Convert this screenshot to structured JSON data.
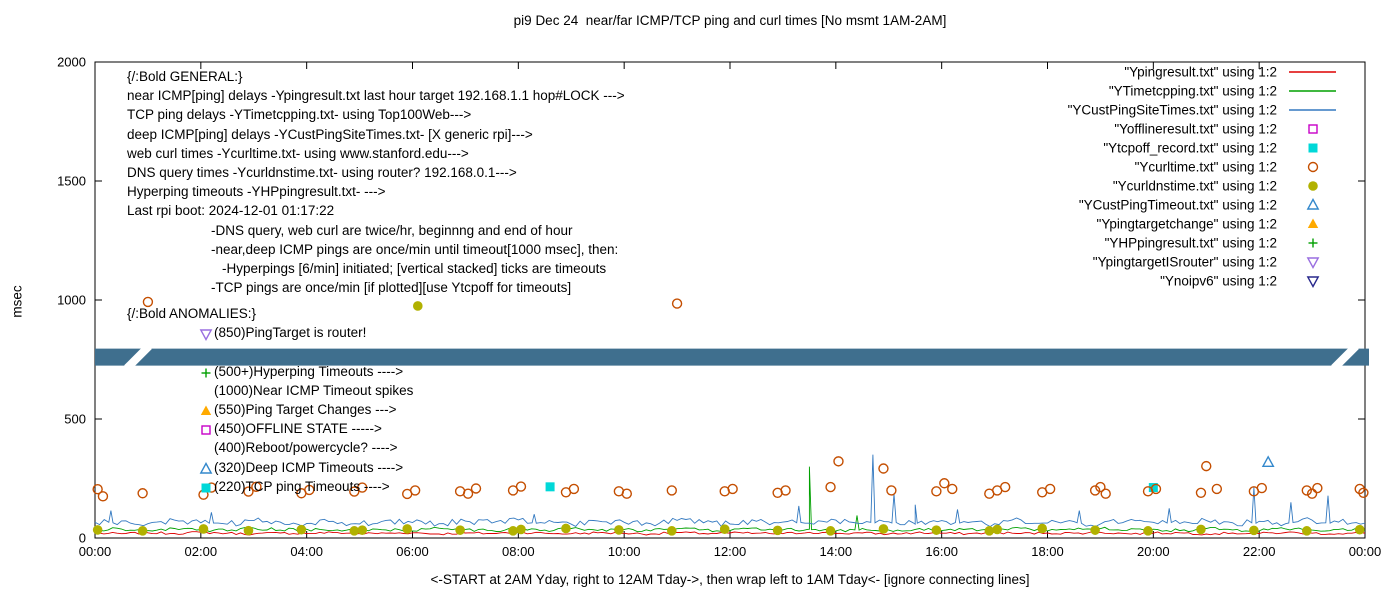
{
  "chart_data": {
    "type": "line+scatter",
    "title": "pi9 Dec 24  near/far ICMP/TCP ping and curl times [No msmt 1AM-2AM]",
    "xlabel": "<-START at 2AM Yday, right to 12AM Tday->, then wrap left to 1AM Tday<- [ignore connecting lines]",
    "ylabel": "msec",
    "x_range": [
      0,
      24
    ],
    "y_range": [
      0,
      2000
    ],
    "y_ticks": [
      0,
      500,
      1000,
      1500,
      2000
    ],
    "x_tick_labels": [
      "00:00",
      "02:00",
      "04:00",
      "06:00",
      "08:00",
      "10:00",
      "12:00",
      "14:00",
      "16:00",
      "18:00",
      "20:00",
      "22:00",
      "00:00"
    ],
    "grid": false,
    "legend_position": "top-right-inside",
    "band": {
      "y_msec": 760,
      "color": "#3f6f8e"
    },
    "series": [
      {
        "name": "Ypingresult.txt",
        "legend": "\"Ypingresult.txt\" using 1:2",
        "style": "line",
        "color": "#dd0000",
        "x_start": 0,
        "x_step": 0.5,
        "noise": 5,
        "values": [
          20,
          18,
          22,
          19,
          24,
          20,
          17,
          21,
          19,
          23,
          18,
          20,
          22,
          17,
          21,
          19,
          24,
          20,
          18,
          22,
          20,
          17,
          23,
          19,
          21,
          20,
          18,
          24,
          19,
          21,
          17,
          22,
          20,
          18,
          23,
          19,
          21,
          20,
          24,
          18,
          20,
          22,
          17,
          21,
          19,
          23,
          20,
          18,
          21
        ],
        "spikes": []
      },
      {
        "name": "YTimetcpping.txt",
        "legend": "\"YTimetcpping.txt\" using 1:2",
        "style": "line",
        "color": "#00a000",
        "x_start": 0,
        "x_step": 0.5,
        "noise": 7,
        "values": [
          34,
          38,
          31,
          40,
          35,
          30,
          42,
          33,
          37,
          32,
          39,
          34,
          30,
          41,
          36,
          31,
          38,
          33,
          40,
          32,
          36,
          30,
          39,
          35,
          31,
          42,
          34,
          37,
          30,
          40,
          33,
          36,
          31,
          38,
          34,
          41,
          30,
          35,
          39,
          32,
          37,
          31,
          40,
          34,
          30,
          38,
          33,
          36,
          34
        ],
        "spikes": [
          [
            13.46,
            36
          ],
          [
            13.5,
            300
          ],
          [
            13.54,
            35
          ],
          [
            14.36,
            34
          ],
          [
            14.4,
            95
          ],
          [
            14.44,
            33
          ]
        ]
      },
      {
        "name": "YCustPingSiteTimes.txt",
        "legend": "\"YCustPingSiteTimes.txt\" using 1:2",
        "style": "line",
        "color": "#3379c0",
        "x_start": 0,
        "x_step": 0.5,
        "noise": 13,
        "values": [
          66,
          72,
          60,
          75,
          64,
          58,
          73,
          67,
          61,
          70,
          59,
          74,
          65,
          60,
          71,
          63,
          76,
          62,
          58,
          72,
          66,
          60,
          74,
          64,
          59,
          70,
          67,
          62,
          75,
          61,
          68,
          58,
          73,
          65,
          60,
          76,
          63,
          69,
          59,
          72,
          66,
          61,
          74,
          64,
          70,
          60,
          75,
          67,
          63
        ],
        "spikes": [
          [
            0.26,
            66
          ],
          [
            0.3,
            115
          ],
          [
            0.34,
            64
          ],
          [
            2.16,
            62
          ],
          [
            2.2,
            108
          ],
          [
            2.24,
            63
          ],
          [
            8.26,
            64
          ],
          [
            8.3,
            100
          ],
          [
            8.34,
            62
          ],
          [
            13.26,
            64
          ],
          [
            13.3,
            135
          ],
          [
            13.34,
            65
          ],
          [
            14.66,
            66
          ],
          [
            14.7,
            350
          ],
          [
            14.74,
            64
          ],
          [
            15.06,
            63
          ],
          [
            15.1,
            185
          ],
          [
            15.14,
            65
          ],
          [
            15.46,
            64
          ],
          [
            15.5,
            140
          ],
          [
            15.54,
            62
          ],
          [
            16.26,
            65
          ],
          [
            16.3,
            120
          ],
          [
            16.34,
            63
          ],
          [
            18.56,
            64
          ],
          [
            18.6,
            115
          ],
          [
            18.64,
            62
          ],
          [
            20.26,
            63
          ],
          [
            20.3,
            125
          ],
          [
            20.34,
            65
          ],
          [
            21.86,
            64
          ],
          [
            21.9,
            212
          ],
          [
            21.94,
            62
          ],
          [
            22.56,
            63
          ],
          [
            22.6,
            150
          ],
          [
            22.64,
            65
          ],
          [
            23.26,
            64
          ],
          [
            23.3,
            178
          ],
          [
            23.34,
            62
          ]
        ]
      },
      {
        "name": "Yofflineresult.txt",
        "legend": "\"Yofflineresult.txt\" using 1:2",
        "style": "square-open",
        "color": "#c800c8",
        "points": []
      },
      {
        "name": "Ytcpoff_record.txt",
        "legend": "\"Ytcpoff_record.txt\" using 1:2",
        "style": "square-filled",
        "color": "#00d8d8",
        "points": [
          [
            8.6,
            215
          ],
          [
            20.0,
            212
          ]
        ]
      },
      {
        "name": "Ycurltime.txt",
        "legend": "\"Ycurltime.txt\" using 1:2",
        "style": "circle-open",
        "color": "#c44e00",
        "points": [
          [
            0.05,
            205
          ],
          [
            0.15,
            175
          ],
          [
            0.9,
            188
          ],
          [
            1.0,
            992
          ],
          [
            2.05,
            182
          ],
          [
            2.2,
            212
          ],
          [
            2.9,
            195
          ],
          [
            3.05,
            215
          ],
          [
            3.9,
            188
          ],
          [
            4.05,
            202
          ],
          [
            4.9,
            195
          ],
          [
            5.05,
            212
          ],
          [
            5.9,
            185
          ],
          [
            6.05,
            200
          ],
          [
            6.9,
            196
          ],
          [
            7.05,
            186
          ],
          [
            7.2,
            208
          ],
          [
            7.9,
            200
          ],
          [
            8.05,
            216
          ],
          [
            8.9,
            192
          ],
          [
            9.05,
            206
          ],
          [
            9.9,
            196
          ],
          [
            10.05,
            186
          ],
          [
            10.9,
            200
          ],
          [
            11.0,
            985
          ],
          [
            11.9,
            196
          ],
          [
            12.05,
            206
          ],
          [
            12.9,
            190
          ],
          [
            13.05,
            200
          ],
          [
            13.9,
            214
          ],
          [
            14.05,
            322
          ],
          [
            14.9,
            292
          ],
          [
            15.05,
            200
          ],
          [
            15.9,
            196
          ],
          [
            16.05,
            230
          ],
          [
            16.2,
            206
          ],
          [
            16.9,
            186
          ],
          [
            17.05,
            200
          ],
          [
            17.2,
            214
          ],
          [
            17.9,
            192
          ],
          [
            18.05,
            206
          ],
          [
            18.9,
            200
          ],
          [
            19.0,
            214
          ],
          [
            19.1,
            186
          ],
          [
            19.9,
            196
          ],
          [
            20.05,
            206
          ],
          [
            20.9,
            190
          ],
          [
            21.0,
            302
          ],
          [
            21.2,
            206
          ],
          [
            21.9,
            196
          ],
          [
            22.05,
            210
          ],
          [
            22.9,
            200
          ],
          [
            23.0,
            186
          ],
          [
            23.1,
            210
          ],
          [
            23.9,
            206
          ],
          [
            23.97,
            190
          ]
        ]
      },
      {
        "name": "Ycurldnstime.txt",
        "legend": "\"Ycurldnstime.txt\" using 1:2",
        "style": "circle-filled",
        "color": "#b1b100",
        "points": [
          [
            0.05,
            34
          ],
          [
            0.9,
            30
          ],
          [
            2.05,
            38
          ],
          [
            2.9,
            31
          ],
          [
            3.9,
            35
          ],
          [
            4.9,
            30
          ],
          [
            5.05,
            33
          ],
          [
            5.9,
            38
          ],
          [
            6.1,
            975
          ],
          [
            6.9,
            33
          ],
          [
            7.9,
            30
          ],
          [
            8.05,
            36
          ],
          [
            8.9,
            40
          ],
          [
            9.9,
            34
          ],
          [
            10.9,
            30
          ],
          [
            11.9,
            37
          ],
          [
            12.9,
            32
          ],
          [
            13.9,
            30
          ],
          [
            14.9,
            38
          ],
          [
            15.9,
            33
          ],
          [
            16.9,
            30
          ],
          [
            17.05,
            36
          ],
          [
            17.9,
            40
          ],
          [
            18.9,
            33
          ],
          [
            19.9,
            30
          ],
          [
            20.9,
            36
          ],
          [
            21.9,
            32
          ],
          [
            22.9,
            30
          ],
          [
            23.9,
            35
          ]
        ]
      },
      {
        "name": "YCustPingTimeout.txt",
        "legend": "\"YCustPingTimeout.txt\" using 1:2",
        "style": "triangle-open",
        "color": "#3388cc",
        "points": [
          [
            22.17,
            318
          ]
        ]
      },
      {
        "name": "Ypingtargetchange",
        "legend": "\"Ypingtargetchange\" using 1:2",
        "style": "triangle-filled",
        "color": "#ffaa00",
        "points": []
      },
      {
        "name": "YHPpingresult.txt",
        "legend": "\"YHPpingresult.txt\" using 1:2",
        "style": "plus",
        "color": "#00a000",
        "points": []
      },
      {
        "name": "YpingtargetISrouter",
        "legend": "\"YpingtargetISrouter\" using 1:2",
        "style": "tri-down-open",
        "color": "#9a6fe0",
        "points": []
      },
      {
        "name": "Ynoipv6",
        "legend": "\"Ynoipv6\" using 1:2",
        "style": "tri-down-open",
        "color": "#28288c",
        "points": []
      }
    ]
  },
  "annotations": {
    "general": [
      {
        "text": "{/:Bold GENERAL:}",
        "indent": 0
      },
      {
        "text": "near ICMP[ping] delays -Ypingresult.txt last hour target 192.168.1.1 hop#LOCK --->",
        "indent": 0
      },
      {
        "text": "TCP ping delays -YTimetcpping.txt- using Top100Web--->",
        "indent": 0
      },
      {
        "text": "deep ICMP[ping] delays -YCustPingSiteTimes.txt- [X generic rpi]--->",
        "indent": 0
      },
      {
        "text": "web curl times -Ycurltime.txt- using www.stanford.edu--->",
        "indent": 0
      },
      {
        "text": "DNS query times -Ycurldnstime.txt- using router? 192.168.0.1--->",
        "indent": 0
      },
      {
        "text": "Hyperping timeouts -YHPpingresult.txt- --->",
        "indent": 0
      },
      {
        "text": "Last rpi boot: 2024-12-01 01:17:22",
        "indent": 0
      },
      {
        "text": "-DNS query, web curl are twice/hr, beginnng and end of hour",
        "indent": 1
      },
      {
        "text": "-near,deep ICMP pings are once/min until timeout[1000 msec], then:",
        "indent": 1
      },
      {
        "text": "-Hyperpings [6/min] initiated; [vertical stacked] ticks are timeouts",
        "indent": 2
      },
      {
        "text": "-TCP pings are once/min [if plotted][use Ytcpoff for timeouts]",
        "indent": 1
      }
    ],
    "anomalies": [
      {
        "text": "{/:Bold ANOMALIES:}",
        "indented": false
      },
      {
        "text": "(850)PingTarget is router!",
        "marker": "tri-down-open",
        "color": "#9a6fe0",
        "indented": true
      },
      {
        "text": "",
        "indented": true
      },
      {
        "text": "(500+)Hyperping Timeouts ---->",
        "marker": "plus",
        "color": "#00a000",
        "indented": true
      },
      {
        "text": "(1000)Near ICMP Timeout spikes",
        "indented": true
      },
      {
        "text": "(550)Ping Target Changes --->",
        "marker": "triangle-filled",
        "color": "#ffaa00",
        "indented": true
      },
      {
        "text": "(450)OFFLINE STATE ----->",
        "marker": "square-open",
        "color": "#c800c8",
        "indented": true
      },
      {
        "text": "(400)Reboot/powercycle? ---->",
        "indented": true
      },
      {
        "text": "(320)Deep ICMP Timeouts ---->",
        "marker": "triangle-open",
        "color": "#3388cc",
        "indented": true
      },
      {
        "text": "(220)TCP ping Timeouts ---->",
        "marker": "square-filled",
        "color": "#00d8d8",
        "indented": true
      }
    ]
  }
}
